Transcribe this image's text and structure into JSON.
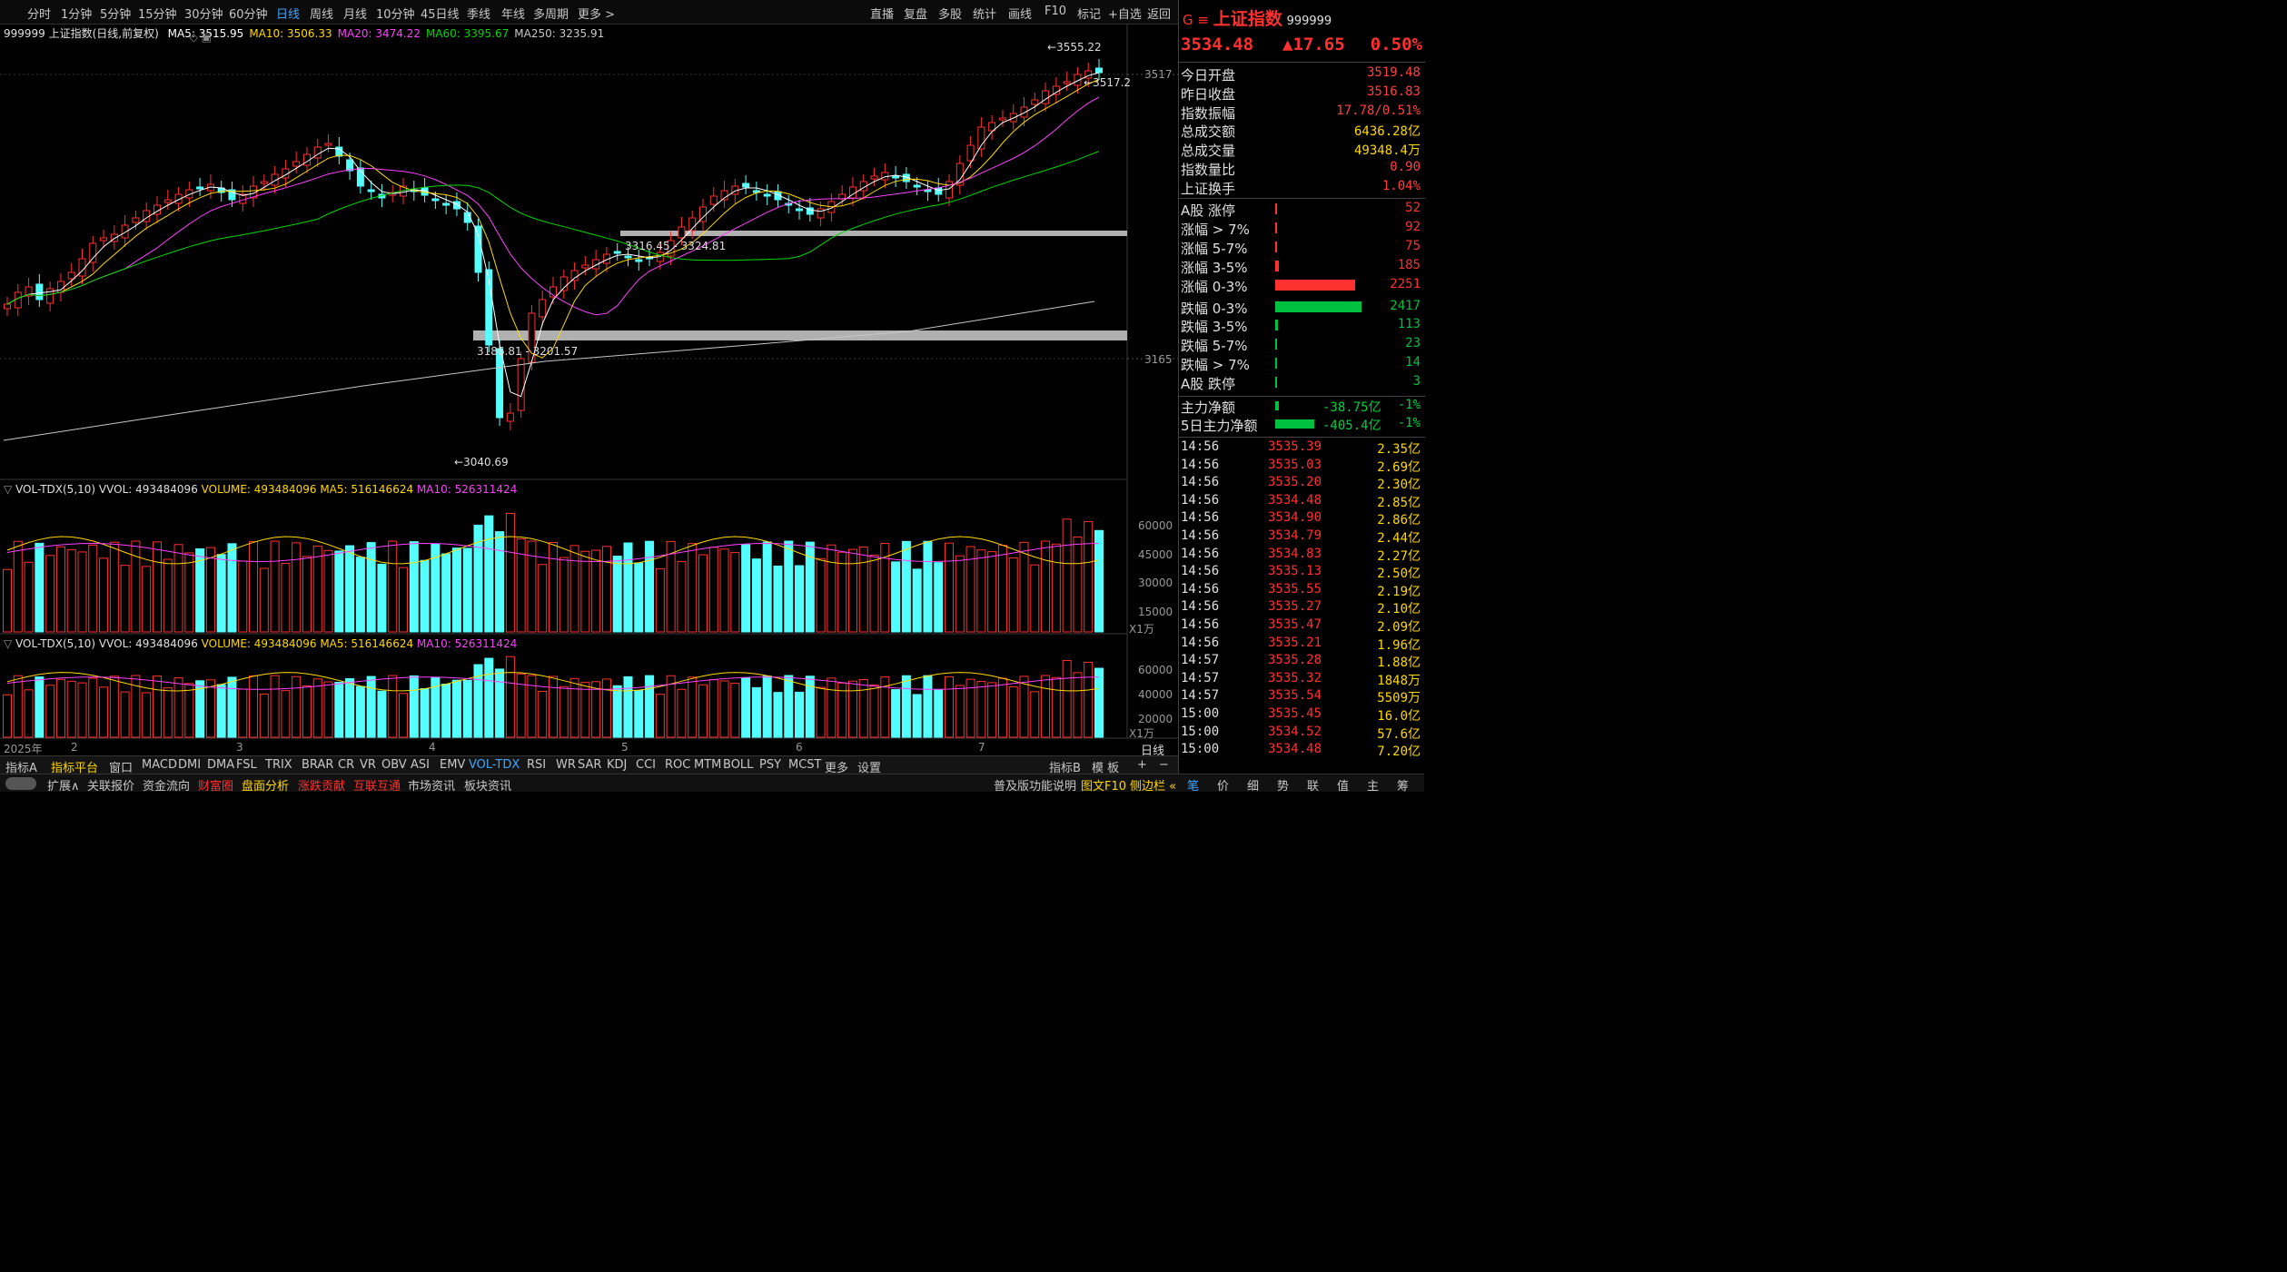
{
  "toolbar": {
    "periods": [
      "分时",
      "1分钟",
      "5分钟",
      "15分钟",
      "30分钟",
      "60分钟",
      "日线",
      "周线",
      "月线",
      "10分钟",
      "45日线",
      "季线",
      "年线",
      "多周期",
      "更多 >"
    ],
    "selected": "日线",
    "right": [
      "直播",
      "复盘",
      "多股",
      "统计",
      "画线",
      "F10",
      "标记",
      "+自选",
      "返回"
    ]
  },
  "main": {
    "legend_title": "999999 上证指数(日线,前复权)",
    "ma": [
      {
        "label": "MA5: 3515.95",
        "color": "#ffffff"
      },
      {
        "label": "MA10: 3506.33",
        "color": "#ffd800"
      },
      {
        "label": "MA20: 3474.22",
        "color": "#ff40ff"
      },
      {
        "label": "MA60: 3395.67",
        "color": "#00d800"
      },
      {
        "label": "MA250: 3235.91",
        "color": "#c8c8c8"
      }
    ],
    "price_ticks": [
      "3517",
      "3165"
    ],
    "annot_high": "3555.22",
    "annot_last": "3517.2",
    "annot_low": "3040.69",
    "zone1": "3316.45 - 3324.81",
    "zone2": "3186.81 - 3201.57"
  },
  "vol1": {
    "title": "VOL-TDX(5,10)",
    "vvol": "VVOL: 493484096",
    "volume": "VOLUME: 493484096",
    "ma5": "MA5: 516146624",
    "ma10": "MA10: 526311424",
    "ticks": [
      "60000",
      "45000",
      "30000",
      "15000"
    ],
    "unit": "X1万"
  },
  "vol2": {
    "title": "VOL-TDX(5,10)",
    "vvol": "VVOL: 493484096",
    "volume": "VOLUME: 493484096",
    "ma5": "MA5: 516146624",
    "ma10": "MA10: 526311424",
    "ticks": [
      "60000",
      "40000",
      "20000"
    ],
    "unit": "X1万"
  },
  "xaxis": {
    "year": "2025年",
    "months": [
      "2",
      "3",
      "4",
      "5",
      "6",
      "7"
    ],
    "period": "日线"
  },
  "indicator_tabs": [
    "指标A",
    "指标平台",
    "窗口",
    "MACD",
    "DMI",
    "DMA",
    "FSL",
    "TRIX",
    "BRAR",
    "CR",
    "VR",
    "OBV",
    "ASI",
    "EMV",
    "VOL-TDX",
    "RSI",
    "WR",
    "SAR",
    "KDJ",
    "CCI",
    "ROC",
    "MTM",
    "BOLL",
    "PSY",
    "MCST",
    "更多",
    "设置"
  ],
  "indicator_selected": "VOL-TDX",
  "indicator_right": [
    "指标B",
    "模 板",
    "+",
    "−"
  ],
  "bottom_tabs": [
    "扩展∧",
    "关联报价",
    "资金流向",
    "财富圈",
    "盘面分析",
    "涨跌贡献",
    "互联互通",
    "市场资讯",
    "板块资讯"
  ],
  "bottom_right": [
    "普及版功能说明",
    "图文F10",
    "侧边栏 «"
  ],
  "bottom_right_tabs": [
    "笔",
    "价",
    "细",
    "势",
    "联",
    "值",
    "主",
    "筹"
  ],
  "quote": {
    "flag": "G",
    "menu": "≡",
    "name": "上证指数",
    "code": "999999",
    "price": "3534.48",
    "change": "▲17.65",
    "pct": "0.50%"
  },
  "stats": [
    {
      "label": "今日开盘",
      "value": "3519.48"
    },
    {
      "label": "昨日收盘",
      "value": "3516.83"
    },
    {
      "label": "指数振幅",
      "value": "17.78/0.51%"
    },
    {
      "label": "总成交额",
      "value": "6436.28亿"
    },
    {
      "label": "总成交量",
      "value": "49348.4万"
    },
    {
      "label": "指数量比",
      "value": "0.90"
    },
    {
      "label": "上证换手",
      "value": "1.04%"
    }
  ],
  "breadth": [
    {
      "label": "A股 涨停",
      "value": "52",
      "bar": 0.01,
      "color": "#ff3030"
    },
    {
      "label": "涨幅 > 7%",
      "value": "92",
      "bar": 0.02,
      "color": "#ff3030"
    },
    {
      "label": "涨幅 5-7%",
      "value": "75",
      "bar": 0.015,
      "color": "#ff3030"
    },
    {
      "label": "涨幅 3-5%",
      "value": "185",
      "bar": 0.04,
      "color": "#ff3030"
    },
    {
      "label": "涨幅 0-3%",
      "value": "2251",
      "bar": 0.93,
      "color": "#ff3030"
    },
    {
      "label": "跌幅 0-3%",
      "value": "2417",
      "bar": 1.0,
      "color": "#00c040"
    },
    {
      "label": "跌幅 3-5%",
      "value": "113",
      "bar": 0.03,
      "color": "#00c040"
    },
    {
      "label": "跌幅 5-7%",
      "value": "23",
      "bar": 0.008,
      "color": "#00c040"
    },
    {
      "label": "跌幅 > 7%",
      "value": "14",
      "bar": 0.006,
      "color": "#00c040"
    },
    {
      "label": "A股 跌停",
      "value": "3",
      "bar": 0.004,
      "color": "#00c040"
    }
  ],
  "flows": [
    {
      "label": "主力净额",
      "value": "-38.75亿",
      "pct": "-1%",
      "bar": 0.04
    },
    {
      "label": "5日主力净额",
      "value": "-405.4亿",
      "pct": "-1%",
      "bar": 0.45
    }
  ],
  "ticks": [
    {
      "t": "14:56",
      "p": "3535.39",
      "v": "2.35亿"
    },
    {
      "t": "14:56",
      "p": "3535.03",
      "v": "2.69亿"
    },
    {
      "t": "14:56",
      "p": "3535.20",
      "v": "2.30亿"
    },
    {
      "t": "14:56",
      "p": "3534.48",
      "v": "2.85亿"
    },
    {
      "t": "14:56",
      "p": "3534.90",
      "v": "2.86亿"
    },
    {
      "t": "14:56",
      "p": "3534.79",
      "v": "2.44亿"
    },
    {
      "t": "14:56",
      "p": "3534.83",
      "v": "2.27亿"
    },
    {
      "t": "14:56",
      "p": "3535.13",
      "v": "2.50亿"
    },
    {
      "t": "14:56",
      "p": "3535.55",
      "v": "2.19亿"
    },
    {
      "t": "14:56",
      "p": "3535.27",
      "v": "2.10亿"
    },
    {
      "t": "14:56",
      "p": "3535.47",
      "v": "2.09亿"
    },
    {
      "t": "14:56",
      "p": "3535.21",
      "v": "1.96亿"
    },
    {
      "t": "14:57",
      "p": "3535.28",
      "v": "1.88亿"
    },
    {
      "t": "14:57",
      "p": "3535.32",
      "v": "1848万"
    },
    {
      "t": "14:57",
      "p": "3535.54",
      "v": "5509万"
    },
    {
      "t": "15:00",
      "p": "3535.45",
      "v": "16.0亿"
    },
    {
      "t": "15:00",
      "p": "3534.52",
      "v": "57.6亿"
    },
    {
      "t": "15:00",
      "p": "3534.48",
      "v": "7.20亿"
    }
  ]
}
